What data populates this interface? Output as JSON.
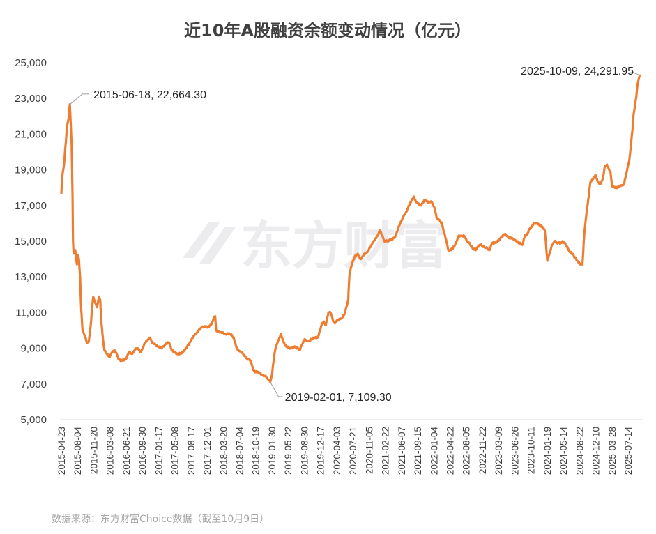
{
  "chart_data": {
    "type": "line",
    "title": "近10年A股融资余额变动情况（亿元）",
    "source": "数据来源：东方财富Choice数据（截至10月9日）",
    "watermark": "东方财富",
    "ylim": [
      5000,
      25000
    ],
    "y_ticks": [
      "5,000",
      "7,000",
      "9,000",
      "11,000",
      "13,000",
      "15,000",
      "17,000",
      "19,000",
      "21,000",
      "23,000",
      "25,000"
    ],
    "y_tick_values": [
      5000,
      7000,
      9000,
      11000,
      13000,
      15000,
      17000,
      19000,
      21000,
      23000,
      25000
    ],
    "x_range": [
      "2015-04-23",
      "2025-10-09"
    ],
    "x_ticks": [
      "2015-04-23",
      "2015-08-04",
      "2015-11-20",
      "2016-03-08",
      "2016-06-21",
      "2016-09-30",
      "2017-01-17",
      "2017-05-08",
      "2017-08-17",
      "2017-12-01",
      "2018-03-20",
      "2018-07-04",
      "2018-10-19",
      "2019-01-30",
      "2019-05-22",
      "2019-08-30",
      "2019-12-17",
      "2020-04-03",
      "2020-07-21",
      "2020-11-05",
      "2021-02-22",
      "2021-06-07",
      "2021-09-15",
      "2022-01-04",
      "2022-04-22",
      "2022-08-05",
      "2022-11-22",
      "2023-03-09",
      "2023-06-26",
      "2023-10-11",
      "2024-01-19",
      "2024-05-14",
      "2024-08-22",
      "2024-12-10",
      "2025-03-28",
      "2025-07-14"
    ],
    "grid": false,
    "series": [
      {
        "color": "#ed7d31",
        "points": [
          [
            "2015-04-23",
            17700
          ],
          [
            "2015-04-30",
            18700
          ],
          [
            "2015-05-12",
            19400
          ],
          [
            "2015-05-22",
            20500
          ],
          [
            "2015-06-01",
            21500
          ],
          [
            "2015-06-10",
            21900
          ],
          [
            "2015-06-18",
            22664.3
          ],
          [
            "2015-06-24",
            21600
          ],
          [
            "2015-06-30",
            20400
          ],
          [
            "2015-07-06",
            17500
          ],
          [
            "2015-07-09",
            15000
          ],
          [
            "2015-07-14",
            14300
          ],
          [
            "2015-07-24",
            14500
          ],
          [
            "2015-08-04",
            13700
          ],
          [
            "2015-08-12",
            14200
          ],
          [
            "2015-08-18",
            13900
          ],
          [
            "2015-08-25",
            13000
          ],
          [
            "2015-09-01",
            11200
          ],
          [
            "2015-09-10",
            10000
          ],
          [
            "2015-09-25",
            9700
          ],
          [
            "2015-10-10",
            9300
          ],
          [
            "2015-10-22",
            9400
          ],
          [
            "2015-11-03",
            10300
          ],
          [
            "2015-11-12",
            11200
          ],
          [
            "2015-11-20",
            11900
          ],
          [
            "2015-12-01",
            11600
          ],
          [
            "2015-12-15",
            11300
          ],
          [
            "2015-12-28",
            11900
          ],
          [
            "2016-01-05",
            11700
          ],
          [
            "2016-01-13",
            10400
          ],
          [
            "2016-01-22",
            9600
          ],
          [
            "2016-02-01",
            8900
          ],
          [
            "2016-02-18",
            8700
          ],
          [
            "2016-03-08",
            8500
          ],
          [
            "2016-03-25",
            8800
          ],
          [
            "2016-04-08",
            8900
          ],
          [
            "2016-04-22",
            8700
          ],
          [
            "2016-05-06",
            8400
          ],
          [
            "2016-05-25",
            8300
          ],
          [
            "2016-06-21",
            8400
          ],
          [
            "2016-07-15",
            8800
          ],
          [
            "2016-08-05",
            8700
          ],
          [
            "2016-08-25",
            9000
          ],
          [
            "2016-09-10",
            9000
          ],
          [
            "2016-09-30",
            8800
          ],
          [
            "2016-10-20",
            9200
          ],
          [
            "2016-11-15",
            9500
          ],
          [
            "2016-11-30",
            9600
          ],
          [
            "2016-12-15",
            9300
          ],
          [
            "2017-01-05",
            9200
          ],
          [
            "2017-01-17",
            9100
          ],
          [
            "2017-02-10",
            9000
          ],
          [
            "2017-03-01",
            9100
          ],
          [
            "2017-03-20",
            9300
          ],
          [
            "2017-04-05",
            9300
          ],
          [
            "2017-04-20",
            8900
          ],
          [
            "2017-05-08",
            8800
          ],
          [
            "2017-05-25",
            8700
          ],
          [
            "2017-06-15",
            8700
          ],
          [
            "2017-07-05",
            8800
          ],
          [
            "2017-07-25",
            9000
          ],
          [
            "2017-08-17",
            9300
          ],
          [
            "2017-09-05",
            9600
          ],
          [
            "2017-09-25",
            9800
          ],
          [
            "2017-10-15",
            10000
          ],
          [
            "2017-11-05",
            10200
          ],
          [
            "2017-12-01",
            10200
          ],
          [
            "2017-12-20",
            10200
          ],
          [
            "2018-01-05",
            10300
          ],
          [
            "2018-01-20",
            10600
          ],
          [
            "2018-02-02",
            10800
          ],
          [
            "2018-02-09",
            10000
          ],
          [
            "2018-02-28",
            9900
          ],
          [
            "2018-03-20",
            9900
          ],
          [
            "2018-04-05",
            9800
          ],
          [
            "2018-04-25",
            9800
          ],
          [
            "2018-05-15",
            9800
          ],
          [
            "2018-06-05",
            9600
          ],
          [
            "2018-06-20",
            9100
          ],
          [
            "2018-07-04",
            8900
          ],
          [
            "2018-07-25",
            8800
          ],
          [
            "2018-08-15",
            8600
          ],
          [
            "2018-09-05",
            8400
          ],
          [
            "2018-09-25",
            8300
          ],
          [
            "2018-10-11",
            7800
          ],
          [
            "2018-10-19",
            7700
          ],
          [
            "2018-11-05",
            7700
          ],
          [
            "2018-11-25",
            7600
          ],
          [
            "2018-12-15",
            7500
          ],
          [
            "2019-01-05",
            7400
          ],
          [
            "2019-01-30",
            7200
          ],
          [
            "2019-02-01",
            7109.3
          ],
          [
            "2019-02-12",
            7500
          ],
          [
            "2019-02-25",
            8400
          ],
          [
            "2019-03-08",
            9000
          ],
          [
            "2019-03-20",
            9300
          ],
          [
            "2019-04-03",
            9600
          ],
          [
            "2019-04-12",
            9800
          ],
          [
            "2019-04-25",
            9500
          ],
          [
            "2019-05-08",
            9200
          ],
          [
            "2019-05-22",
            9100
          ],
          [
            "2019-06-15",
            9000
          ],
          [
            "2019-07-10",
            9100
          ],
          [
            "2019-07-30",
            9000
          ],
          [
            "2019-08-15",
            8900
          ],
          [
            "2019-08-30",
            9200
          ],
          [
            "2019-09-15",
            9500
          ],
          [
            "2019-10-08",
            9400
          ],
          [
            "2019-10-30",
            9500
          ],
          [
            "2019-11-20",
            9600
          ],
          [
            "2019-12-05",
            9600
          ],
          [
            "2019-12-17",
            9700
          ],
          [
            "2020-01-05",
            10300
          ],
          [
            "2020-01-20",
            10500
          ],
          [
            "2020-02-03",
            10300
          ],
          [
            "2020-02-20",
            11000
          ],
          [
            "2020-03-05",
            11000
          ],
          [
            "2020-03-20",
            10600
          ],
          [
            "2020-04-03",
            10400
          ],
          [
            "2020-04-25",
            10600
          ],
          [
            "2020-05-20",
            10700
          ],
          [
            "2020-06-10",
            11000
          ],
          [
            "2020-06-30",
            11700
          ],
          [
            "2020-07-08",
            13100
          ],
          [
            "2020-07-21",
            13600
          ],
          [
            "2020-08-10",
            14100
          ],
          [
            "2020-09-01",
            14300
          ],
          [
            "2020-09-20",
            14000
          ],
          [
            "2020-10-15",
            14300
          ],
          [
            "2020-11-05",
            14400
          ],
          [
            "2020-11-25",
            14700
          ],
          [
            "2020-12-15",
            15000
          ],
          [
            "2021-01-10",
            15300
          ],
          [
            "2021-01-25",
            15600
          ],
          [
            "2021-02-10",
            15300
          ],
          [
            "2021-02-22",
            15000
          ],
          [
            "2021-03-15",
            15000
          ],
          [
            "2021-04-10",
            15100
          ],
          [
            "2021-05-05",
            15200
          ],
          [
            "2021-05-25",
            15700
          ],
          [
            "2021-06-07",
            16000
          ],
          [
            "2021-06-25",
            16300
          ],
          [
            "2021-07-15",
            16600
          ],
          [
            "2021-08-05",
            17000
          ],
          [
            "2021-08-25",
            17300
          ],
          [
            "2021-09-08",
            17500
          ],
          [
            "2021-09-15",
            17300
          ],
          [
            "2021-10-05",
            17100
          ],
          [
            "2021-10-25",
            17000
          ],
          [
            "2021-11-15",
            17300
          ],
          [
            "2021-12-05",
            17200
          ],
          [
            "2021-12-20",
            17200
          ],
          [
            "2022-01-04",
            17200
          ],
          [
            "2022-01-20",
            16900
          ],
          [
            "2022-02-05",
            16300
          ],
          [
            "2022-02-20",
            16200
          ],
          [
            "2022-03-10",
            16000
          ],
          [
            "2022-03-25",
            15500
          ],
          [
            "2022-04-10",
            15000
          ],
          [
            "2022-04-22",
            14500
          ],
          [
            "2022-05-10",
            14500
          ],
          [
            "2022-05-30",
            14700
          ],
          [
            "2022-06-15",
            15000
          ],
          [
            "2022-06-30",
            15300
          ],
          [
            "2022-07-20",
            15300
          ],
          [
            "2022-08-05",
            15300
          ],
          [
            "2022-08-25",
            15000
          ],
          [
            "2022-09-10",
            14900
          ],
          [
            "2022-09-30",
            14600
          ],
          [
            "2022-10-20",
            14500
          ],
          [
            "2022-11-05",
            14700
          ],
          [
            "2022-11-22",
            14800
          ],
          [
            "2022-12-10",
            14700
          ],
          [
            "2023-01-05",
            14600
          ],
          [
            "2023-01-20",
            14500
          ],
          [
            "2023-02-05",
            14900
          ],
          [
            "2023-02-25",
            14900
          ],
          [
            "2023-03-09",
            15000
          ],
          [
            "2023-03-30",
            15100
          ],
          [
            "2023-04-15",
            15300
          ],
          [
            "2023-05-05",
            15400
          ],
          [
            "2023-05-25",
            15200
          ],
          [
            "2023-06-10",
            15200
          ],
          [
            "2023-06-26",
            15100
          ],
          [
            "2023-07-15",
            15000
          ],
          [
            "2023-08-05",
            14900
          ],
          [
            "2023-08-25",
            14800
          ],
          [
            "2023-09-10",
            15300
          ],
          [
            "2023-09-25",
            15400
          ],
          [
            "2023-10-11",
            15700
          ],
          [
            "2023-10-25",
            15800
          ],
          [
            "2023-11-10",
            16000
          ],
          [
            "2023-11-25",
            16000
          ],
          [
            "2023-12-15",
            15900
          ],
          [
            "2024-01-05",
            15800
          ],
          [
            "2024-01-19",
            15600
          ],
          [
            "2024-01-26",
            15000
          ],
          [
            "2024-02-05",
            13900
          ],
          [
            "2024-02-20",
            14300
          ],
          [
            "2024-03-08",
            14800
          ],
          [
            "2024-03-25",
            15000
          ],
          [
            "2024-04-15",
            14900
          ],
          [
            "2024-05-05",
            14900
          ],
          [
            "2024-05-14",
            15000
          ],
          [
            "2024-05-30",
            14900
          ],
          [
            "2024-06-15",
            14700
          ],
          [
            "2024-07-01",
            14400
          ],
          [
            "2024-07-20",
            14300
          ],
          [
            "2024-08-05",
            14100
          ],
          [
            "2024-08-22",
            13900
          ],
          [
            "2024-09-10",
            13700
          ],
          [
            "2024-09-24",
            13700
          ],
          [
            "2024-09-30",
            14500
          ],
          [
            "2024-10-08",
            15600
          ],
          [
            "2024-10-20",
            16500
          ],
          [
            "2024-11-05",
            17500
          ],
          [
            "2024-11-15",
            18300
          ],
          [
            "2024-11-25",
            18400
          ],
          [
            "2024-12-10",
            18600
          ],
          [
            "2024-12-20",
            18700
          ],
          [
            "2025-01-05",
            18300
          ],
          [
            "2025-01-20",
            18200
          ],
          [
            "2025-02-05",
            18500
          ],
          [
            "2025-02-20",
            19200
          ],
          [
            "2025-03-05",
            19300
          ],
          [
            "2025-03-15",
            19100
          ],
          [
            "2025-03-28",
            18900
          ],
          [
            "2025-04-08",
            18100
          ],
          [
            "2025-04-25",
            18000
          ],
          [
            "2025-05-15",
            18000
          ],
          [
            "2025-06-05",
            18100
          ],
          [
            "2025-06-25",
            18200
          ],
          [
            "2025-07-14",
            18900
          ],
          [
            "2025-07-30",
            19500
          ],
          [
            "2025-08-10",
            20300
          ],
          [
            "2025-08-20",
            21200
          ],
          [
            "2025-08-28",
            22100
          ],
          [
            "2025-09-05",
            22500
          ],
          [
            "2025-09-15",
            23100
          ],
          [
            "2025-09-25",
            23900
          ],
          [
            "2025-10-09",
            24291.95
          ]
        ]
      }
    ],
    "annotations": [
      {
        "date": "2015-06-18",
        "value": 22664.3,
        "text": "2015-06-18, 22,664.30"
      },
      {
        "date": "2019-02-01",
        "value": 7109.3,
        "text": "2019-02-01, 7,109.30"
      },
      {
        "date": "2025-10-09",
        "value": 24291.95,
        "text": "2025-10-09, 24,291.95"
      }
    ]
  }
}
